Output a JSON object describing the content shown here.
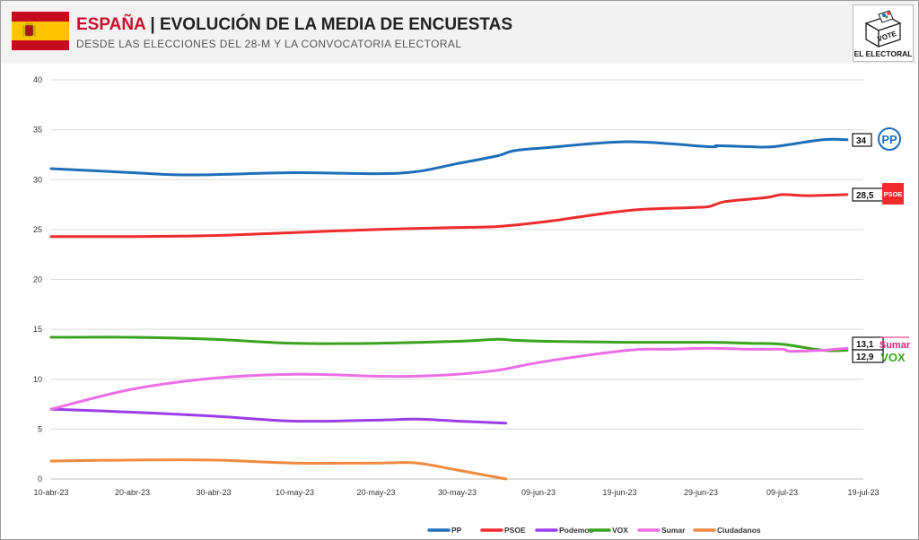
{
  "header": {
    "country": "ESPAÑA",
    "separator": " | ",
    "title": "EVOLUCIÓN DE LA MEDIA DE ENCUESTAS",
    "subtitle": "DESDE LAS ELECCIONES DEL 28-M Y LA CONVOCATORIA ELECTORAL",
    "logo_vote": "VOTE",
    "logo_text": "EL ELECTORAL"
  },
  "colors": {
    "PP": "#1e6eb9",
    "PSOE": "#ef2b2d",
    "Podemos": "#9b3de8",
    "VOX": "#3aa31f",
    "Sumar": "#ec6ee6",
    "Ciudadanos": "#ef8a3e"
  },
  "party_logos": {
    "pp": "PP",
    "psoe": "PSOE",
    "sumar": "Sumar",
    "vox": "VOX"
  },
  "chart_data": {
    "type": "line",
    "ylim": [
      0,
      40
    ],
    "yticks": [
      0,
      5,
      10,
      15,
      20,
      25,
      30,
      35,
      40
    ],
    "xlim": [
      "2023-04-10",
      "2023-07-19"
    ],
    "xticks": [
      "10-abr-23",
      "20-abr-23",
      "30-abr-23",
      "10-may-23",
      "20-may-23",
      "30-may-23",
      "09-jun-23",
      "19-jun-23",
      "29-jun-23",
      "09-jul-23",
      "19-jul-23"
    ],
    "grid": "horizontal",
    "legend_position": "bottom",
    "series": [
      {
        "name": "PP",
        "x": [
          "2023-04-10",
          "2023-04-20",
          "2023-04-25",
          "2023-04-30",
          "2023-05-10",
          "2023-05-20",
          "2023-05-25",
          "2023-05-30",
          "2023-06-04",
          "2023-06-06",
          "2023-06-10",
          "2023-06-20",
          "2023-06-30",
          "2023-07-01",
          "2023-07-05",
          "2023-07-08",
          "2023-07-14",
          "2023-07-17"
        ],
        "values": [
          31.1,
          30.7,
          30.5,
          30.5,
          30.7,
          30.6,
          30.8,
          31.6,
          32.4,
          32.9,
          33.2,
          33.8,
          33.3,
          33.4,
          33.3,
          33.3,
          34.0,
          34.0
        ]
      },
      {
        "name": "PSOE",
        "x": [
          "2023-04-10",
          "2023-04-20",
          "2023-04-30",
          "2023-05-10",
          "2023-05-20",
          "2023-05-30",
          "2023-06-04",
          "2023-06-10",
          "2023-06-20",
          "2023-06-28",
          "2023-06-30",
          "2023-07-02",
          "2023-07-07",
          "2023-07-09",
          "2023-07-12",
          "2023-07-17"
        ],
        "values": [
          24.3,
          24.3,
          24.4,
          24.7,
          25.0,
          25.2,
          25.3,
          25.8,
          26.9,
          27.2,
          27.3,
          27.8,
          28.2,
          28.5,
          28.4,
          28.5
        ]
      },
      {
        "name": "Podemos",
        "x": [
          "2023-04-10",
          "2023-04-20",
          "2023-04-30",
          "2023-05-10",
          "2023-05-20",
          "2023-05-25",
          "2023-05-30",
          "2023-06-05"
        ],
        "values": [
          7.0,
          6.7,
          6.3,
          5.8,
          5.9,
          6.0,
          5.8,
          5.6
        ]
      },
      {
        "name": "VOX",
        "x": [
          "2023-04-10",
          "2023-04-20",
          "2023-04-30",
          "2023-05-10",
          "2023-05-20",
          "2023-05-30",
          "2023-06-04",
          "2023-06-06",
          "2023-06-10",
          "2023-06-20",
          "2023-06-30",
          "2023-07-05",
          "2023-07-09",
          "2023-07-14",
          "2023-07-17"
        ],
        "values": [
          14.2,
          14.2,
          14.0,
          13.6,
          13.6,
          13.8,
          14.0,
          13.9,
          13.8,
          13.7,
          13.7,
          13.6,
          13.5,
          12.9,
          12.9
        ]
      },
      {
        "name": "Sumar",
        "x": [
          "2023-04-10",
          "2023-04-20",
          "2023-04-30",
          "2023-05-10",
          "2023-05-20",
          "2023-05-25",
          "2023-05-30",
          "2023-06-04",
          "2023-06-10",
          "2023-06-20",
          "2023-06-25",
          "2023-06-30",
          "2023-07-05",
          "2023-07-09",
          "2023-07-10",
          "2023-07-14",
          "2023-07-17"
        ],
        "values": [
          7.0,
          9.0,
          10.1,
          10.5,
          10.3,
          10.3,
          10.5,
          10.9,
          11.8,
          12.9,
          13.0,
          13.1,
          13.0,
          13.0,
          12.8,
          12.9,
          13.1
        ]
      },
      {
        "name": "Ciudadanos",
        "x": [
          "2023-04-10",
          "2023-04-20",
          "2023-04-30",
          "2023-05-10",
          "2023-05-20",
          "2023-05-25",
          "2023-05-30",
          "2023-06-05"
        ],
        "values": [
          1.8,
          1.9,
          1.9,
          1.6,
          1.6,
          1.6,
          0.9,
          0.0
        ]
      }
    ],
    "end_labels": [
      {
        "party": "PP",
        "text": "34",
        "value": 34.0
      },
      {
        "party": "PSOE",
        "text": "28,5",
        "value": 28.5
      },
      {
        "party": "Sumar",
        "text": "13,1",
        "value": 13.1
      },
      {
        "party": "VOX",
        "text": "12,9",
        "value": 12.9
      }
    ]
  }
}
